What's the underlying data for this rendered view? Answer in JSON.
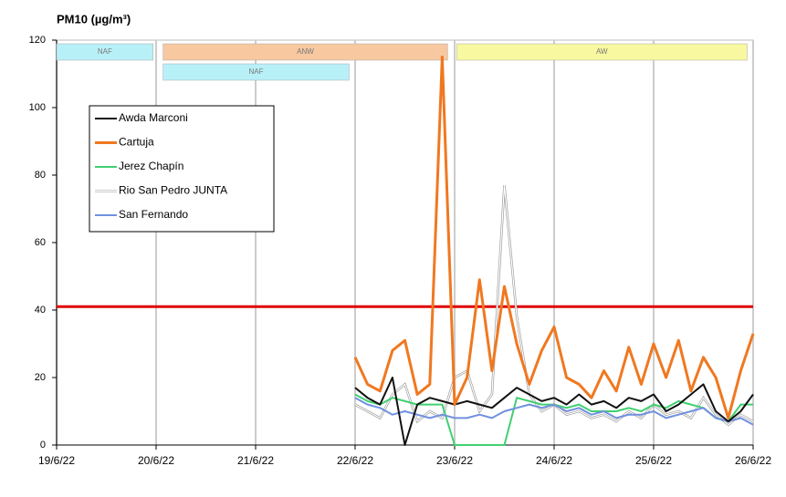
{
  "chart_data": {
    "type": "line",
    "ylabel": "PM10 (µg/m³)",
    "xlim": [
      19,
      26
    ],
    "ylim": [
      0,
      120
    ],
    "xticks": [
      {
        "value": 19,
        "label": "19/6/22"
      },
      {
        "value": 20,
        "label": "20/6/22"
      },
      {
        "value": 21,
        "label": "21/6/22"
      },
      {
        "value": 22,
        "label": "22/6/22"
      },
      {
        "value": 23,
        "label": "23/6/22"
      },
      {
        "value": 24,
        "label": "24/6/22"
      },
      {
        "value": 25,
        "label": "25/6/22"
      },
      {
        "value": 26,
        "label": "26/6/22"
      }
    ],
    "yticks": [
      0,
      20,
      40,
      60,
      80,
      100,
      120
    ],
    "grid": "x",
    "x": [
      22,
      22.125,
      22.25,
      22.375,
      22.5,
      22.625,
      22.75,
      22.875,
      23,
      23.125,
      23.25,
      23.375,
      23.5,
      23.625,
      23.75,
      23.875,
      24,
      24.125,
      24.25,
      24.375,
      24.5,
      24.625,
      24.75,
      24.875,
      25,
      25.125,
      25.25,
      25.375,
      25.5,
      25.625,
      25.75,
      25.875,
      26
    ],
    "series": [
      {
        "name": "Awda Marconi",
        "color": "#111111",
        "values": [
          17,
          14,
          12,
          20,
          0,
          12,
          14,
          13,
          12,
          13,
          12,
          11,
          14,
          17,
          15,
          13,
          14,
          12,
          15,
          12,
          13,
          11,
          14,
          13,
          15,
          10,
          12,
          15,
          18,
          10,
          7,
          10,
          15
        ]
      },
      {
        "name": "Cartuja",
        "color": "#f07820",
        "values": [
          26,
          18,
          16,
          28,
          31,
          15,
          18,
          115,
          12,
          20,
          49,
          22,
          47,
          30,
          18,
          28,
          35,
          20,
          18,
          14,
          22,
          16,
          29,
          18,
          30,
          20,
          31,
          16,
          26,
          20,
          8,
          22,
          33
        ]
      },
      {
        "name": "Jerez Chapín",
        "color": "#40d070",
        "values": [
          15,
          13,
          12,
          14,
          13,
          12,
          12,
          12,
          0,
          0,
          0,
          0,
          0,
          14,
          13,
          12,
          12,
          11,
          12,
          10,
          10,
          10,
          11,
          10,
          12,
          11,
          13,
          12,
          11,
          8,
          7,
          12,
          12
        ]
      },
      {
        "name": "Rio San Pedro JUNTA",
        "color": "#c8c8c8",
        "values": [
          12,
          10,
          8,
          15,
          18,
          7,
          10,
          8,
          20,
          22,
          10,
          15,
          77,
          38,
          15,
          10,
          12,
          9,
          10,
          8,
          9,
          7,
          10,
          8,
          12,
          9,
          10,
          8,
          14,
          9,
          6,
          9,
          7
        ]
      },
      {
        "name": "San Fernando",
        "color": "#7090e0",
        "values": [
          14,
          12,
          11,
          9,
          10,
          9,
          8,
          9,
          8,
          8,
          9,
          8,
          10,
          11,
          12,
          11,
          12,
          10,
          11,
          9,
          10,
          8,
          9,
          9,
          10,
          8,
          9,
          10,
          11,
          8,
          7,
          8,
          6
        ]
      }
    ],
    "reference_line": {
      "value": 41,
      "color": "#e00000"
    },
    "bands": [
      {
        "label": "NAF",
        "start": 19,
        "end": 19.97,
        "row": 1,
        "color": "#b8f0f8"
      },
      {
        "label": "ANW",
        "start": 20.07,
        "end": 22.93,
        "row": 1,
        "color": "#f8c8a0"
      },
      {
        "label": "AW",
        "start": 23.02,
        "end": 25.94,
        "row": 1,
        "color": "#f8f8a0"
      },
      {
        "label": "NAF",
        "start": 20.07,
        "end": 21.94,
        "row": 2,
        "color": "#b8f0f8"
      }
    ]
  }
}
